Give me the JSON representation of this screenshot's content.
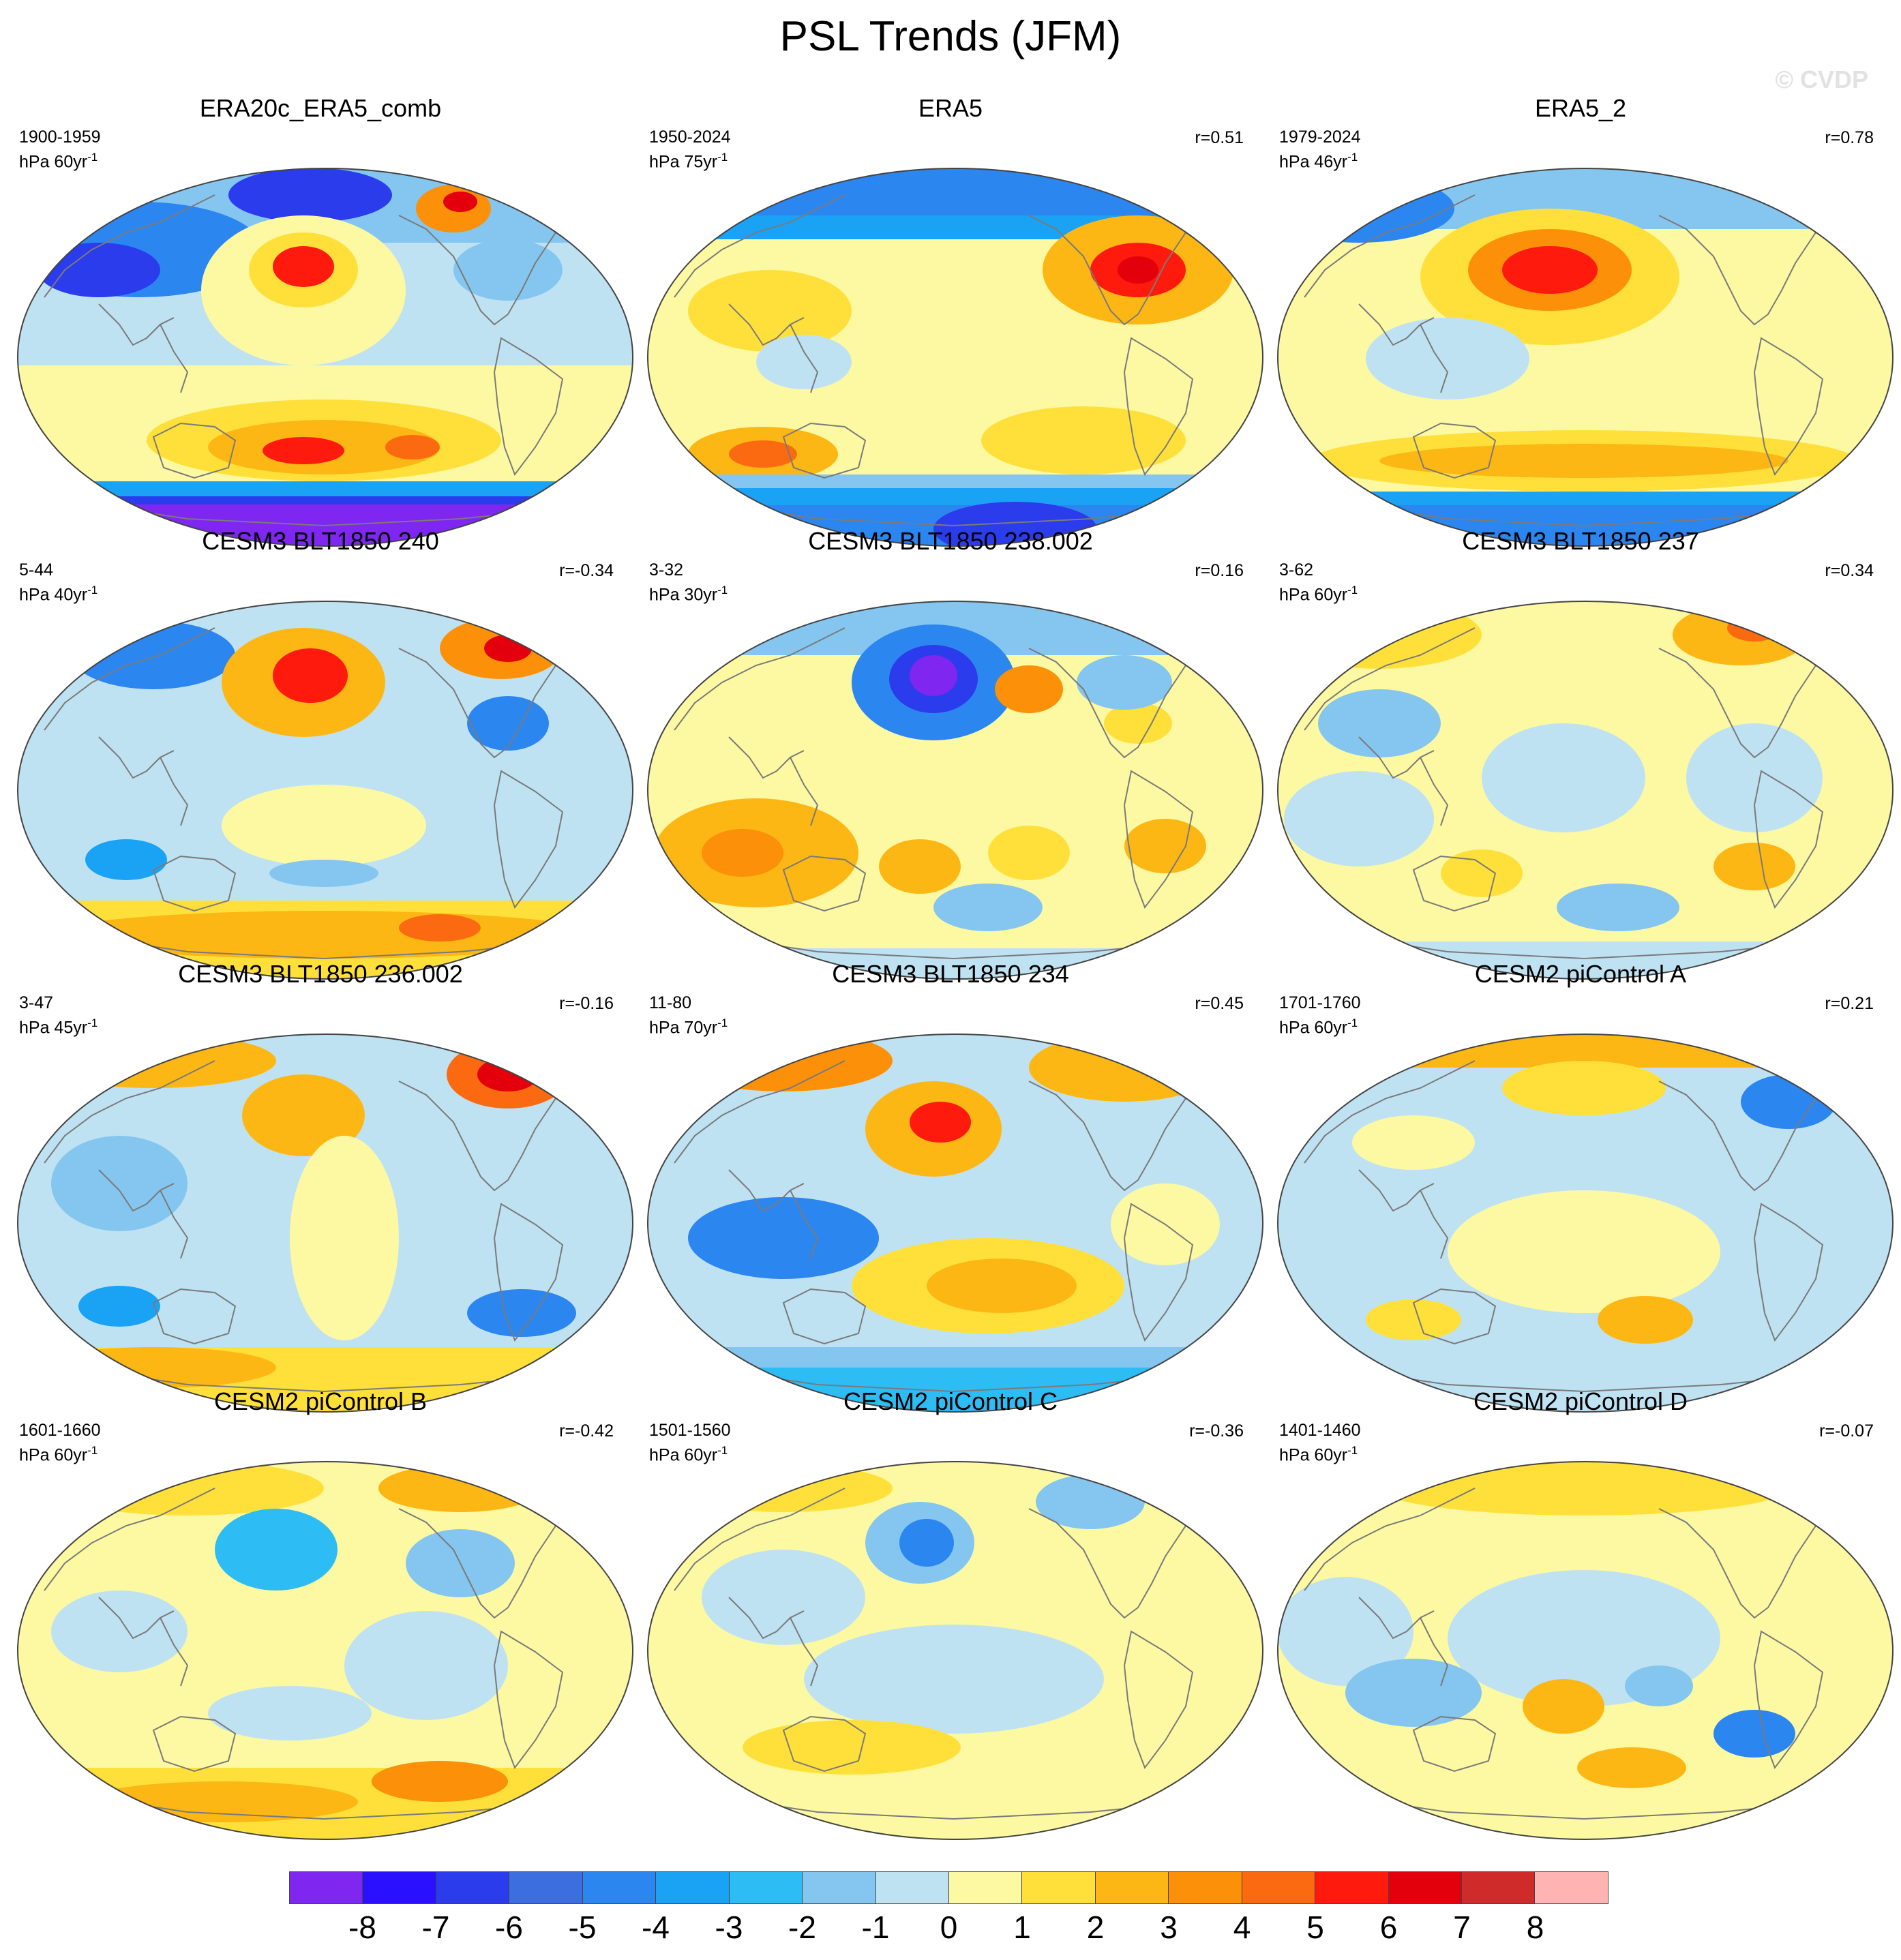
{
  "title": "PSL Trends (JFM)",
  "watermark": "© CVDP",
  "colors": {
    "n8": "#7f26f0",
    "n7": "#2b0fff",
    "n6": "#2a3cec",
    "n5": "#3d6ee0",
    "n4": "#2c86f0",
    "n3": "#1aa3f5",
    "n2": "#2dbdf4",
    "n15": "#84c6ef",
    "n1": "#bfe2f3",
    "p0": "#fdf9a3",
    "p1": "#ffe03b",
    "p2": "#fdb714",
    "p3": "#fc9008",
    "p4": "#fb6a10",
    "p5": "#fe1a0d",
    "p6": "#e3000c",
    "p7": "#cf2b2b",
    "p8": "#ffb3b3",
    "coast": "#7a7a7a"
  },
  "panels": [
    {
      "title": "ERA20c_ERA5_comb",
      "period": "1900-1959",
      "units": "hPa 60yr",
      "exp": "-1",
      "r": ""
    },
    {
      "title": "ERA5",
      "period": "1950-2024",
      "units": "hPa 75yr",
      "exp": "-1",
      "r": "r=0.51"
    },
    {
      "title": "ERA5_2",
      "period": "1979-2024",
      "units": "hPa 46yr",
      "exp": "-1",
      "r": "r=0.78"
    },
    {
      "title": "CESM3 BLT1850 240",
      "period": "5-44",
      "units": "hPa 40yr",
      "exp": "-1",
      "r": "r=-0.34"
    },
    {
      "title": "CESM3 BLT1850 238.002",
      "period": "3-32",
      "units": "hPa 30yr",
      "exp": "-1",
      "r": "r=0.16"
    },
    {
      "title": "CESM3 BLT1850 237",
      "period": "3-62",
      "units": "hPa 60yr",
      "exp": "-1",
      "r": "r=0.34"
    },
    {
      "title": "CESM3 BLT1850 236.002",
      "period": "3-47",
      "units": "hPa 45yr",
      "exp": "-1",
      "r": "r=-0.16"
    },
    {
      "title": "CESM3 BLT1850 234",
      "period": "11-80",
      "units": "hPa 70yr",
      "exp": "-1",
      "r": "r=0.45"
    },
    {
      "title": "CESM2 piControl A",
      "period": "1701-1760",
      "units": "hPa 60yr",
      "exp": "-1",
      "r": "r=0.21"
    },
    {
      "title": "CESM2 piControl B",
      "period": "1601-1660",
      "units": "hPa 60yr",
      "exp": "-1",
      "r": "r=-0.42"
    },
    {
      "title": "CESM2 piControl C",
      "period": "1501-1560",
      "units": "hPa 60yr",
      "exp": "-1",
      "r": "r=-0.36"
    },
    {
      "title": "CESM2 piControl D",
      "period": "1401-1460",
      "units": "hPa 60yr",
      "exp": "-1",
      "r": "r=-0.07"
    }
  ],
  "colorbar": {
    "labels": [
      "-8",
      "-7",
      "-6",
      "-5",
      "-4",
      "-3",
      "-2",
      "-1",
      "0",
      "1",
      "2",
      "3",
      "4",
      "5",
      "6",
      "7",
      "8"
    ],
    "colors": [
      "#7f26f0",
      "#2b0fff",
      "#2a3cec",
      "#3d6ee0",
      "#2c86f0",
      "#1aa3f5",
      "#2dbdf4",
      "#84c6ef",
      "#bfe2f3",
      "#fdf9a3",
      "#ffe03b",
      "#fdb714",
      "#fc9008",
      "#fb6a10",
      "#fe1a0d",
      "#e3000c",
      "#cf2b2b",
      "#ffb3b3"
    ]
  }
}
